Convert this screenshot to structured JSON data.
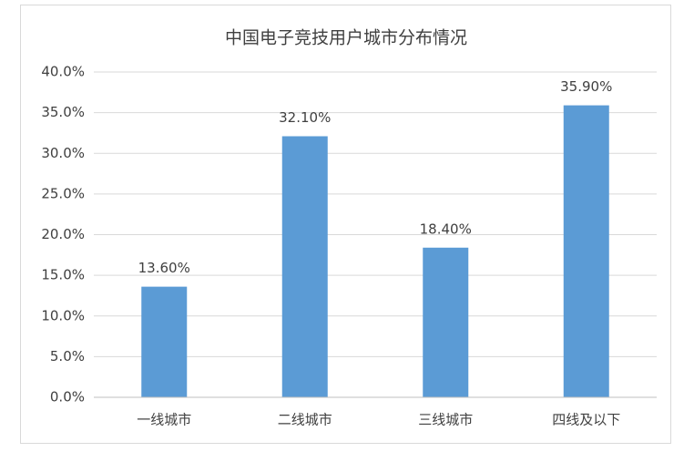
{
  "chart_data": {
    "type": "bar",
    "title": "中国电子竞技用户城市分布情况",
    "categories": [
      "一线城市",
      "二线城市",
      "三线城市",
      "四线及以下"
    ],
    "values": [
      13.6,
      32.1,
      18.4,
      35.9
    ],
    "value_labels": [
      "13.60%",
      "32.10%",
      "18.40%",
      "35.90%"
    ],
    "color": "#5b9bd5",
    "ylim": [
      0,
      40
    ],
    "yticks": [
      {
        "value": 0,
        "label": "0.0%"
      },
      {
        "value": 5,
        "label": "5.0%"
      },
      {
        "value": 10,
        "label": "10.0%"
      },
      {
        "value": 15,
        "label": "15.0%"
      },
      {
        "value": 20,
        "label": "20.0%"
      },
      {
        "value": 25,
        "label": "25.0%"
      },
      {
        "value": 30,
        "label": "30.0%"
      },
      {
        "value": 35,
        "label": "35.0%"
      },
      {
        "value": 40,
        "label": "40.0%"
      }
    ],
    "grid": true
  }
}
